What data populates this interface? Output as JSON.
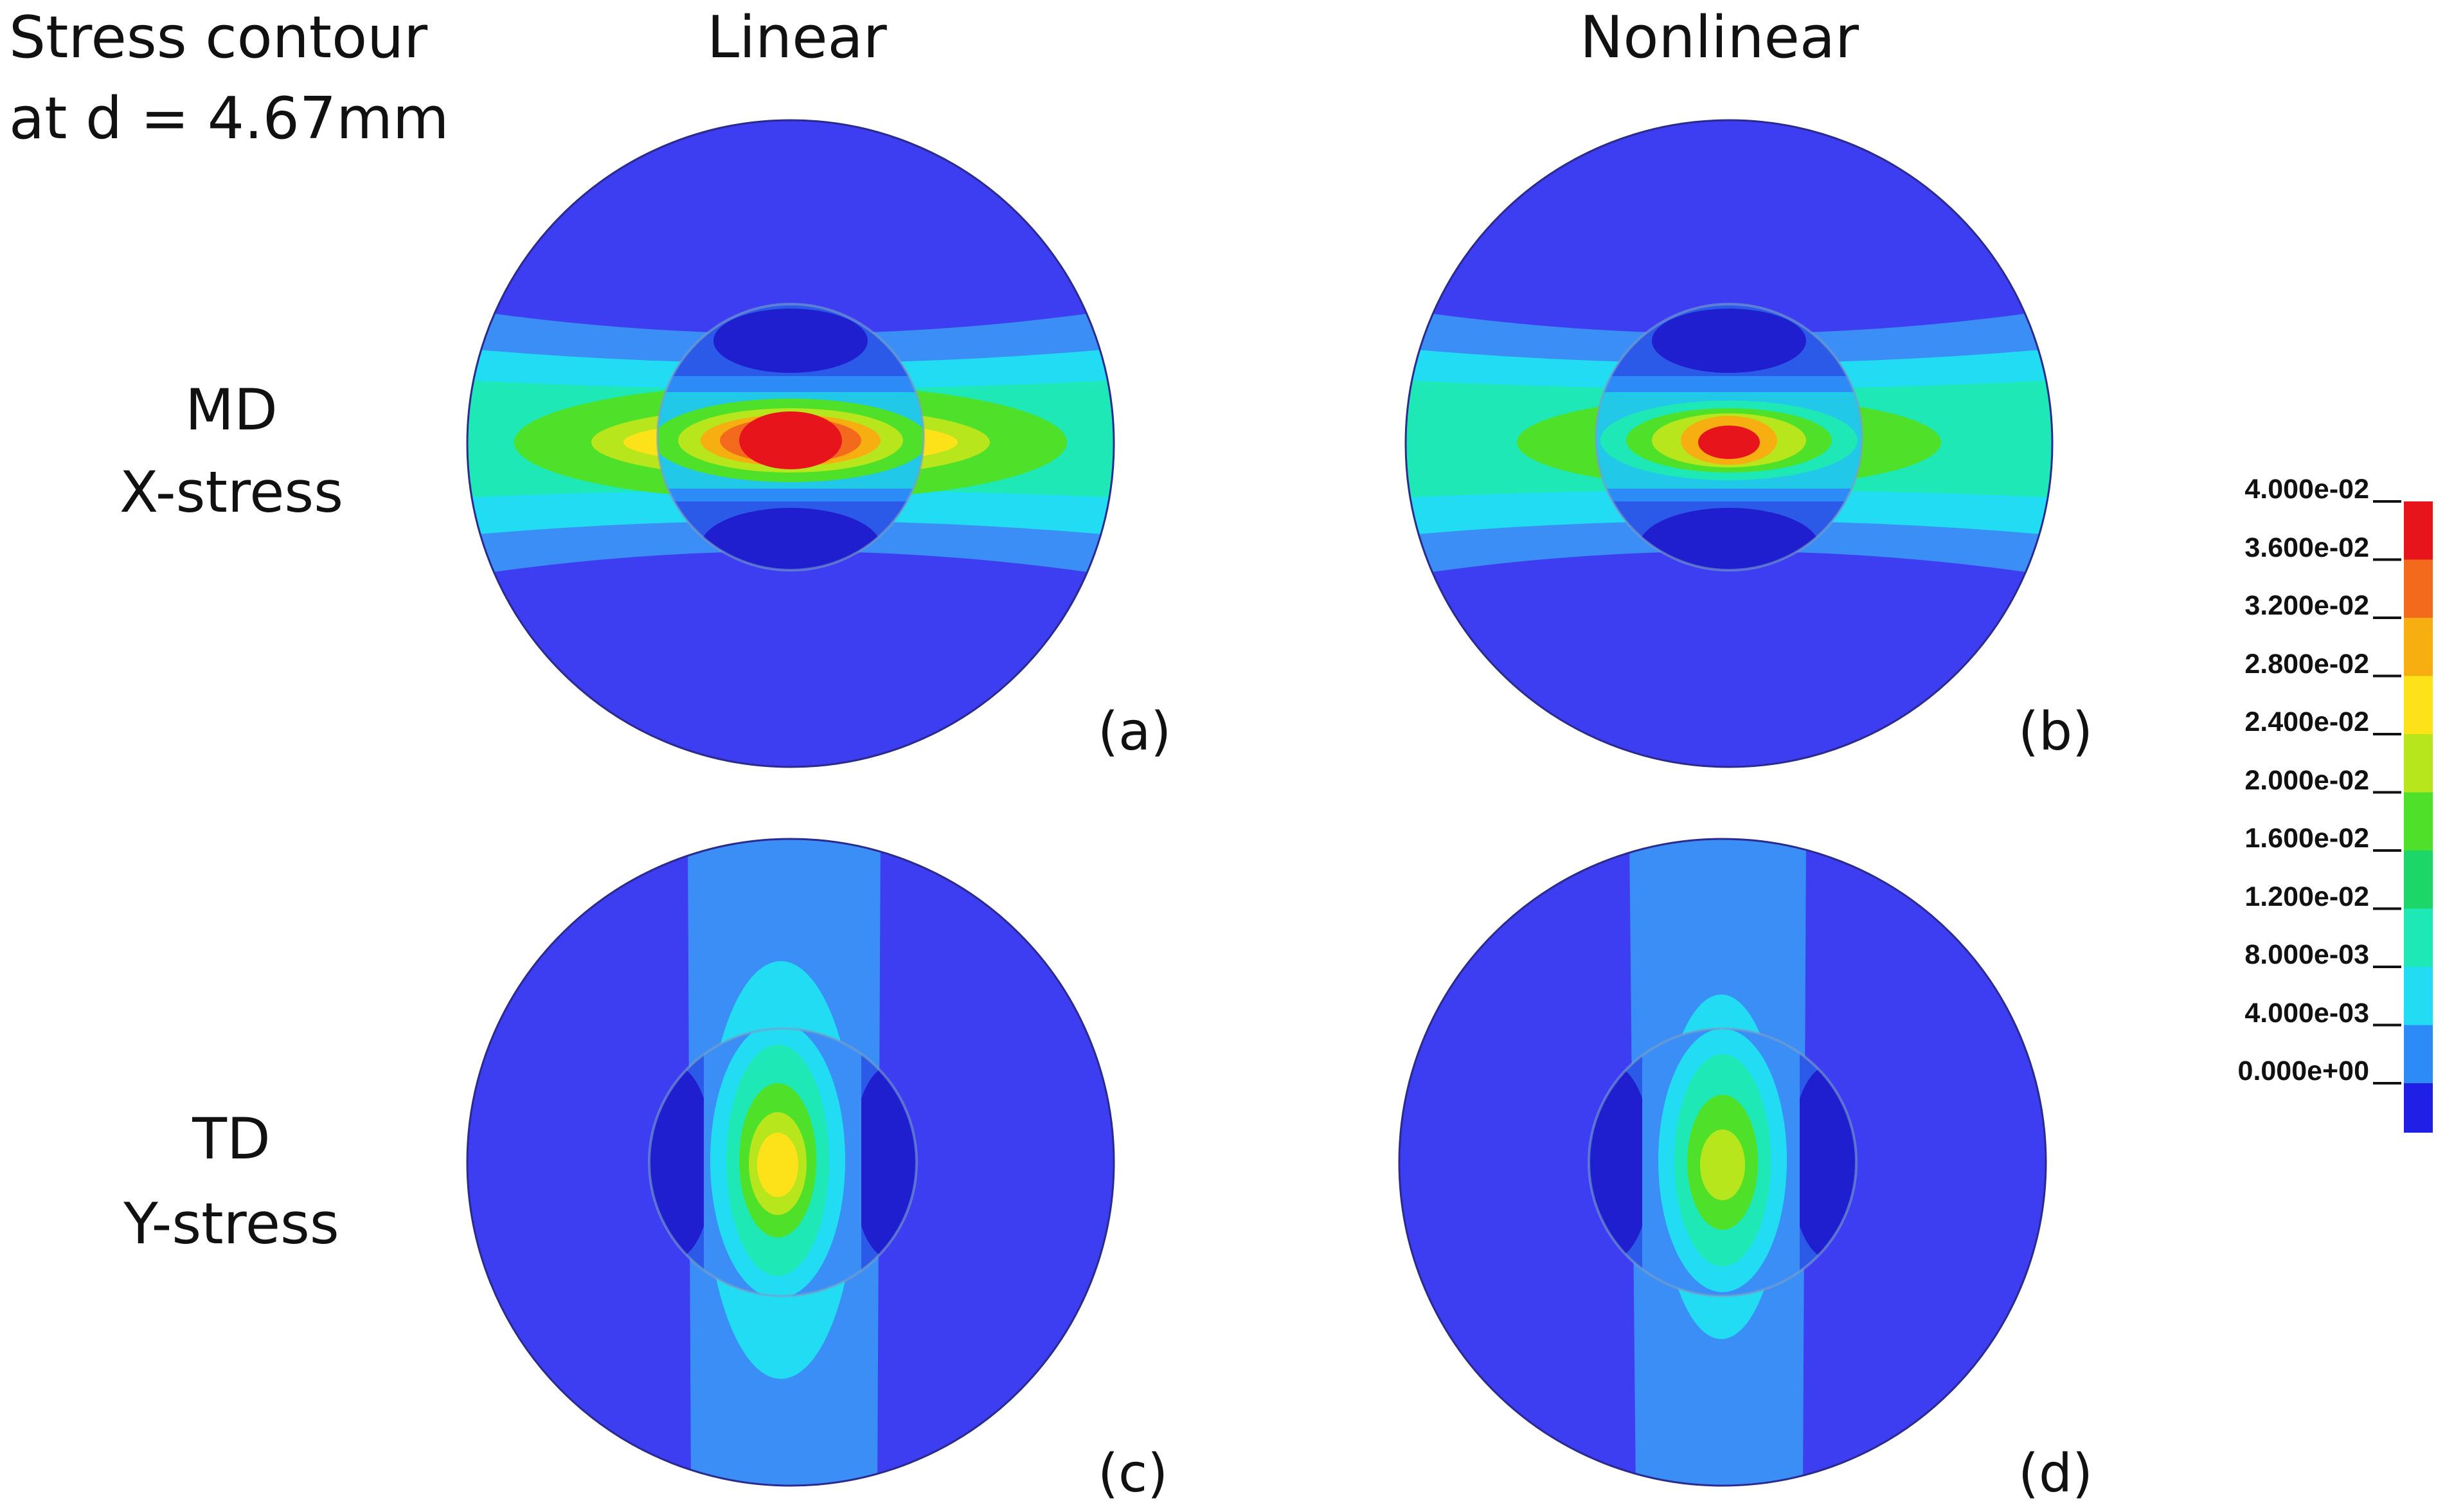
{
  "title": {
    "line1": "Stress contour",
    "line2": "at d = 4.67mm"
  },
  "columns": [
    "Linear",
    "Nonlinear"
  ],
  "rows": [
    {
      "line1": "MD",
      "line2": "X-stress"
    },
    {
      "line1": "TD",
      "line2": "Y-stress"
    }
  ],
  "panels": [
    "(a)",
    "(b)",
    "(c)",
    "(d)"
  ],
  "legend": {
    "ticks": [
      "4.000e-02",
      "3.600e-02",
      "3.200e-02",
      "2.800e-02",
      "2.400e-02",
      "2.000e-02",
      "1.600e-02",
      "1.200e-02",
      "8.000e-03",
      "4.000e-03",
      "0.000e+00"
    ],
    "colors": [
      "#e8141c",
      "#f46a1c",
      "#f6ae10",
      "#fde21a",
      "#b8e61c",
      "#4fe02a",
      "#1dd66a",
      "#1ee8b6",
      "#22dcf4",
      "#2d8bf7",
      "#1f1fe6"
    ]
  }
}
